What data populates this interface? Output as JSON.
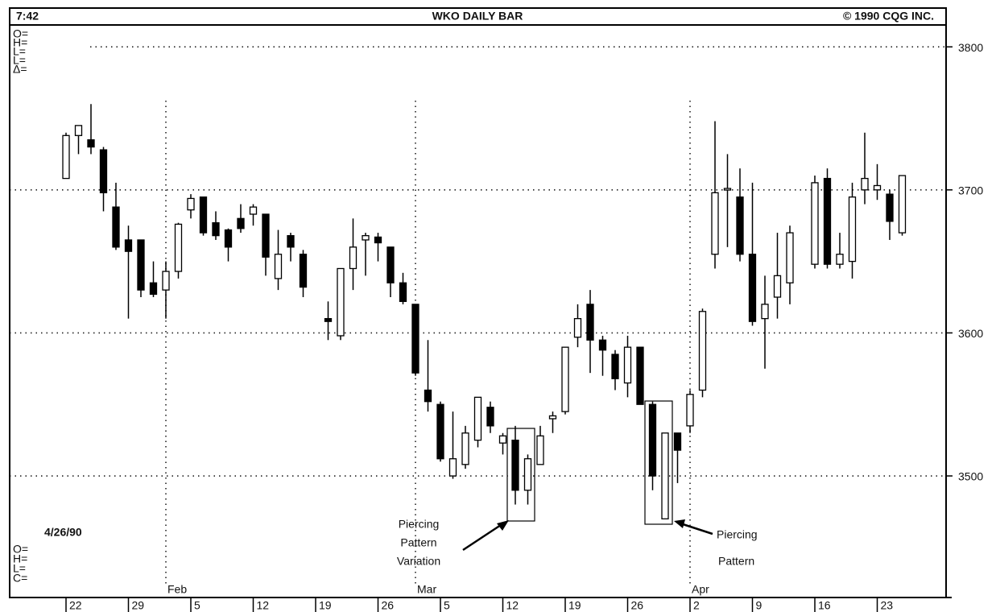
{
  "chart_data": {
    "type": "candlestick",
    "title": "WKO DAILY BAR",
    "time": "7:42",
    "copyright": "© 1990 CQG INC.",
    "date": "4/26/90",
    "top_labels": [
      "O=",
      "H=",
      "L=",
      "L=",
      "Δ="
    ],
    "bottom_labels": [
      "O=",
      "H=",
      "L=",
      "C="
    ],
    "annotations": [
      {
        "text": [
          "Piercing",
          "Pattern",
          "Variation"
        ]
      },
      {
        "text": [
          "Piercing",
          "Pattern"
        ]
      }
    ],
    "categories": [
      "22",
      null,
      null,
      null,
      null,
      "29",
      null,
      null,
      null,
      null,
      "5",
      null,
      null,
      null,
      null,
      "12",
      null,
      null,
      null,
      null,
      "19",
      null,
      null,
      null,
      null,
      "26",
      null,
      null,
      null,
      null,
      "5",
      null,
      null,
      null,
      null,
      "12",
      null,
      null,
      null,
      null,
      "19",
      null,
      null,
      null,
      null,
      "26",
      null,
      null,
      null,
      null,
      "2",
      null,
      null,
      null,
      null,
      "9",
      null,
      null,
      null,
      null,
      "16",
      null,
      null,
      null,
      null,
      "23",
      null,
      null
    ],
    "month_labels": [
      null,
      null,
      null,
      null,
      null,
      null,
      null,
      null,
      "Feb",
      null,
      null,
      null,
      null,
      null,
      null,
      null,
      null,
      null,
      null,
      null,
      null,
      null,
      null,
      null,
      null,
      null,
      null,
      null,
      "Mar",
      null,
      null,
      null,
      null,
      null,
      null,
      null,
      null,
      null,
      null,
      null,
      null,
      null,
      null,
      null,
      null,
      null,
      null,
      null,
      null,
      null,
      "Apr",
      null,
      null,
      null,
      null,
      null,
      null,
      null,
      null,
      null,
      null,
      null,
      null,
      null,
      null,
      null,
      null,
      null
    ],
    "open": [
      3708,
      3738,
      3735,
      3728,
      3688,
      3665,
      3665,
      3635,
      3630,
      3643,
      3686,
      3695,
      3677,
      3672,
      3680,
      3683,
      3683,
      3638,
      3668,
      3655,
      null,
      3610,
      3598,
      3645,
      3665,
      3667,
      3660,
      3635,
      3620,
      3560,
      3550,
      3500,
      3508,
      3525,
      3548,
      3523,
      3525,
      3490,
      3508,
      3540,
      3545,
      3597,
      3620,
      3595,
      3585,
      3565,
      3590,
      3550,
      3470,
      3530,
      3535,
      3560,
      3655,
      3700,
      3695,
      3655,
      3610,
      3625,
      3635,
      null,
      3648,
      3708,
      3648,
      3650,
      3700,
      3700,
      3697,
      3670
    ],
    "high": [
      3740,
      3745,
      3760,
      3730,
      3705,
      3675,
      3665,
      3650,
      3650,
      3677,
      3697,
      3695,
      3685,
      3673,
      3690,
      3690,
      3683,
      3672,
      3670,
      3658,
      null,
      3622,
      3645,
      3680,
      3670,
      3670,
      3660,
      3642,
      3620,
      3595,
      3552,
      3545,
      3535,
      3555,
      3552,
      3530,
      3535,
      3515,
      3535,
      3545,
      3590,
      3620,
      3630,
      3598,
      3588,
      3598,
      3590,
      3552,
      3530,
      3530,
      3560,
      3617,
      3748,
      3725,
      3715,
      3705,
      3640,
      3670,
      3675,
      null,
      3710,
      3715,
      3670,
      3705,
      3740,
      3718,
      3700,
      3710
    ],
    "low": [
      3708,
      3725,
      3725,
      3685,
      3658,
      3610,
      3625,
      3625,
      3610,
      3638,
      3680,
      3668,
      3665,
      3650,
      3670,
      3675,
      3640,
      3630,
      3650,
      3625,
      null,
      3595,
      3595,
      3630,
      3640,
      3650,
      3625,
      3620,
      3570,
      3545,
      3510,
      3498,
      3505,
      3520,
      3530,
      3515,
      3480,
      3480,
      3508,
      3530,
      3543,
      3590,
      3572,
      3570,
      3560,
      3555,
      3550,
      3490,
      3470,
      3495,
      3530,
      3555,
      3645,
      3660,
      3650,
      3605,
      3575,
      3610,
      3620,
      null,
      3645,
      3645,
      3645,
      3638,
      3690,
      3693,
      3665,
      3668
    ],
    "close": [
      3738,
      3745,
      3730,
      3698,
      3660,
      3657,
      3630,
      3627,
      3643,
      3676,
      3694,
      3670,
      3668,
      3660,
      3673,
      3688,
      3653,
      3655,
      3660,
      3632,
      null,
      3608,
      3645,
      3660,
      3668,
      3663,
      3635,
      3622,
      3572,
      3552,
      3512,
      3512,
      3530,
      3555,
      3535,
      3528,
      3490,
      3512,
      3528,
      3542,
      3590,
      3610,
      3595,
      3588,
      3568,
      3590,
      3550,
      3500,
      3530,
      3518,
      3557,
      3615,
      3698,
      3701,
      3655,
      3608,
      3620,
      3640,
      3670,
      null,
      3705,
      3648,
      3655,
      3695,
      3708,
      3703,
      3678,
      3710
    ],
    "color": "#000000",
    "ylim": [
      3415,
      3826
    ],
    "yticks": [
      3500,
      3600,
      3700,
      3800
    ],
    "grid": true
  }
}
